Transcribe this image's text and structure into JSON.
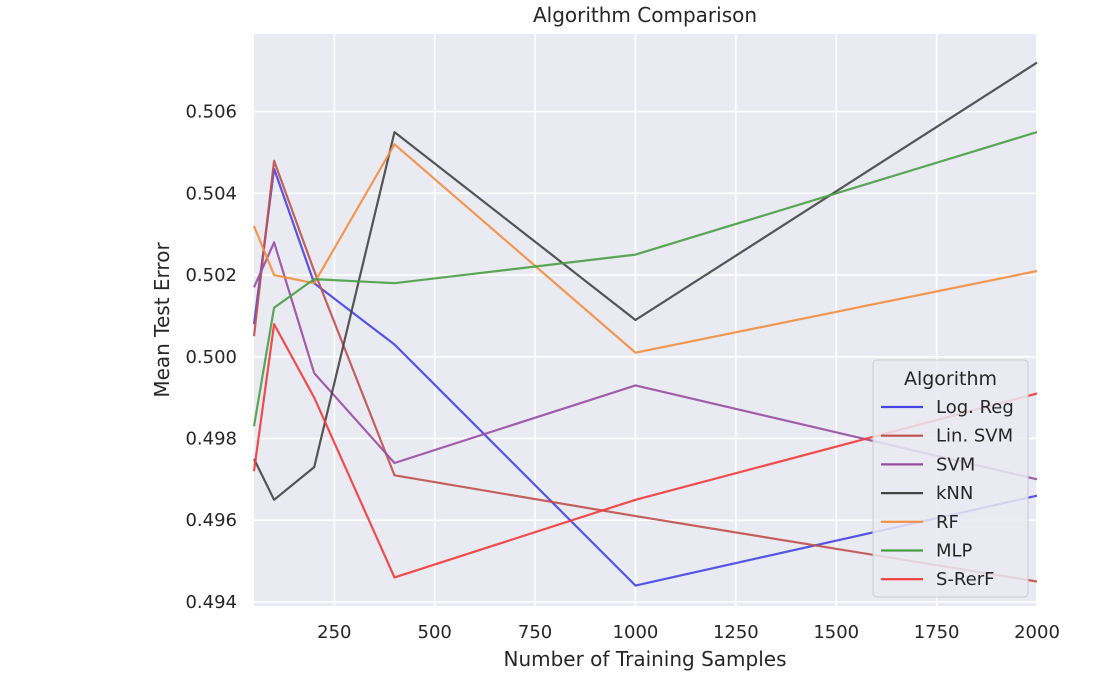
{
  "chart_data": {
    "type": "line",
    "title": "Algorithm Comparison",
    "xlabel": "Number of Training Samples",
    "ylabel": "Mean Test Error",
    "xlim": [
      50,
      2000
    ],
    "ylim": [
      0.4939,
      0.5079
    ],
    "xticks": [
      250,
      500,
      750,
      1000,
      1250,
      1500,
      1750,
      2000
    ],
    "xtick_labels": [
      "250",
      "500",
      "750",
      "1000",
      "1250",
      "1500",
      "1750",
      "2000"
    ],
    "yticks": [
      0.494,
      0.496,
      0.498,
      0.5,
      0.502,
      0.504,
      0.506
    ],
    "ytick_labels": [
      "0.494",
      "0.496",
      "0.498",
      "0.500",
      "0.502",
      "0.504",
      "0.506"
    ],
    "grid": true,
    "background": "#eaeaf2",
    "legend": {
      "title": "Algorithm",
      "placement": "lower-right"
    },
    "x": [
      50,
      100,
      200,
      400,
      1000,
      2000
    ],
    "series": [
      {
        "name": "Log. Reg",
        "color": "#4444e4",
        "values": [
          0.5008,
          0.5046,
          0.5018,
          0.5003,
          0.4944,
          0.4966
        ]
      },
      {
        "name": "Lin. SVM",
        "color": "#c0504d",
        "values": [
          0.5005,
          0.5048,
          0.5021,
          0.4971,
          0.4961,
          0.4945
        ]
      },
      {
        "name": "SVM",
        "color": "#984ea3",
        "values": [
          0.5017,
          0.5028,
          0.4996,
          0.4974,
          0.4993,
          0.497
        ]
      },
      {
        "name": "kNN",
        "color": "#444444",
        "values": [
          0.4975,
          0.4965,
          0.4973,
          0.5055,
          0.5009,
          0.5072
        ]
      },
      {
        "name": "RF",
        "color": "#f28e3f",
        "values": [
          0.5032,
          0.502,
          0.5018,
          0.5052,
          0.5001,
          0.5021
        ]
      },
      {
        "name": "MLP",
        "color": "#4a9e46",
        "values": [
          0.4983,
          0.5012,
          0.5019,
          0.5018,
          0.5025,
          0.5055
        ]
      },
      {
        "name": "S-RerF",
        "color": "#ef3b3b",
        "values": [
          0.4972,
          0.5008,
          0.499,
          0.4946,
          0.4965,
          0.4991
        ]
      }
    ]
  }
}
